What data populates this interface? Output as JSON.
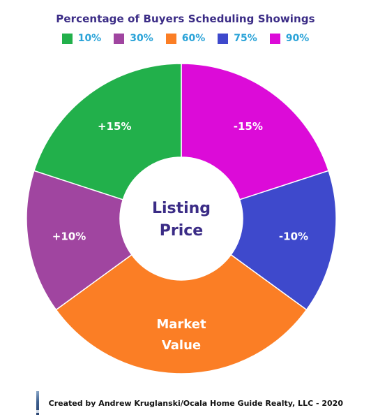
{
  "chart_data": {
    "type": "pie",
    "title": "Percentage of Buyers Scheduling Showings",
    "legend": [
      {
        "label": "10%",
        "color": "#22b04b"
      },
      {
        "label": "30%",
        "color": "#a045a0"
      },
      {
        "label": "60%",
        "color": "#fb7e25"
      },
      {
        "label": "75%",
        "color": "#3e49cc"
      },
      {
        "label": "90%",
        "color": "#dc0bd8"
      }
    ],
    "slices": [
      {
        "label": "-15%",
        "value": 20,
        "color": "#dc0bd8"
      },
      {
        "label": "-10%",
        "value": 15,
        "color": "#3e49cc"
      },
      {
        "label": "Market Value",
        "lines": [
          "Market",
          "Value"
        ],
        "value": 30,
        "color": "#fb7e25"
      },
      {
        "label": "+10%",
        "value": 15,
        "color": "#a045a0"
      },
      {
        "label": "+15%",
        "value": 20,
        "color": "#22b04b"
      }
    ],
    "center_label": [
      "Listing",
      "Price"
    ],
    "legend_placement": "top-center",
    "label_color": "#ffffff",
    "center_label_color": "#3b2c86"
  },
  "footer": {
    "credit": "Created by Andrew Kruglanski/Ocala Home Guide Realty, LLC - 2020"
  }
}
